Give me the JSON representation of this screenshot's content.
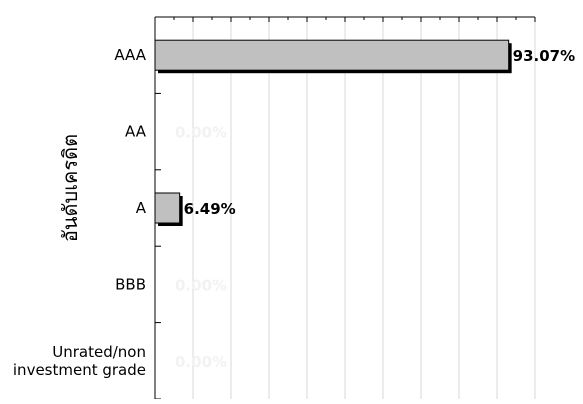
{
  "chart_data": {
    "type": "bar",
    "orientation": "horizontal",
    "ylabel": "อันดับเครดิต",
    "xlabel": "",
    "title": "",
    "categories": [
      "AAA",
      "AA",
      "A",
      "BBB",
      "Unrated/non investment grade"
    ],
    "category_lines": [
      [
        "AAA"
      ],
      [
        "AA"
      ],
      [
        "A"
      ],
      [
        "BBB"
      ],
      [
        "Unrated/non",
        "investment grade"
      ]
    ],
    "values": [
      93.07,
      0,
      6.49,
      0,
      0
    ],
    "data_labels": [
      "93.07%",
      "0.00%",
      "6.49%",
      "0.00%",
      "0.00%"
    ],
    "xlim": [
      0,
      100
    ],
    "x_gridlines": true,
    "x_tick_count": 10,
    "bar_color": "#c0c0c0",
    "bar_border_color": "#000000",
    "label_color": "#000000",
    "zero_label_color": "#f2f2f2",
    "grid_color": "#d9d9d9"
  }
}
